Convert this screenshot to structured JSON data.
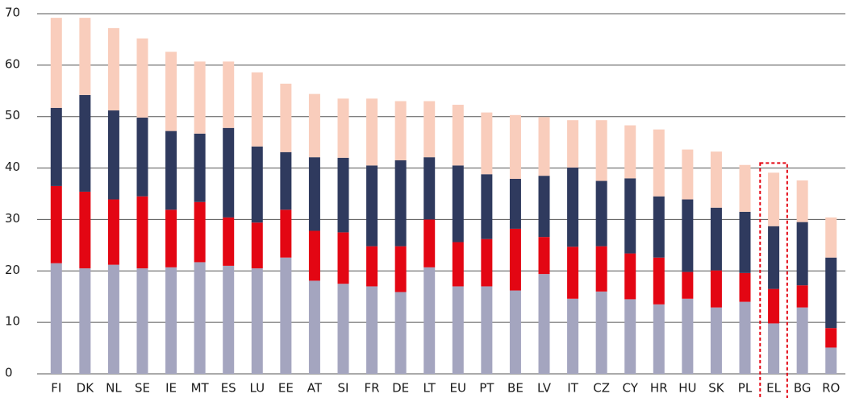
{
  "chart_data": {
    "type": "stacked_bar",
    "categories": [
      "FI",
      "DK",
      "NL",
      "SE",
      "IE",
      "MT",
      "ES",
      "LU",
      "EE",
      "AT",
      "SI",
      "FR",
      "DE",
      "LT",
      "EU",
      "PT",
      "BE",
      "LV",
      "IT",
      "CZ",
      "CY",
      "HR",
      "HU",
      "SK",
      "PL",
      "EL",
      "BG",
      "RO"
    ],
    "series": [
      {
        "color": "#a4a5bf",
        "values": [
          21.5,
          20.5,
          21.2,
          20.5,
          20.7,
          21.7,
          21.0,
          20.5,
          22.6,
          18.1,
          17.5,
          17.0,
          15.9,
          20.7,
          17.0,
          17.0,
          16.2,
          19.4,
          14.6,
          16.0,
          14.5,
          13.5,
          14.6,
          12.9,
          14.0,
          9.8,
          12.9,
          5.1
        ]
      },
      {
        "color": "#e30613",
        "values": [
          15.0,
          14.9,
          12.7,
          14.0,
          11.2,
          11.7,
          9.4,
          8.9,
          9.3,
          9.7,
          10.0,
          7.8,
          8.9,
          9.3,
          8.6,
          9.2,
          12.0,
          7.2,
          10.1,
          8.8,
          8.9,
          9.1,
          5.2,
          7.2,
          5.6,
          6.7,
          4.3,
          3.8
        ]
      },
      {
        "color": "#2f3a5e",
        "values": [
          15.2,
          18.8,
          17.3,
          15.3,
          15.3,
          13.3,
          17.4,
          14.8,
          11.2,
          14.3,
          14.5,
          15.7,
          16.7,
          12.1,
          14.9,
          12.6,
          9.7,
          11.9,
          15.4,
          12.7,
          14.6,
          11.9,
          14.1,
          12.2,
          11.9,
          12.2,
          12.3,
          13.7
        ]
      },
      {
        "color": "#f9cdbc",
        "values": [
          17.5,
          15.0,
          16.0,
          15.4,
          15.4,
          14.0,
          12.9,
          14.4,
          13.3,
          12.3,
          11.5,
          13.0,
          11.5,
          10.9,
          11.8,
          12.0,
          12.4,
          11.4,
          9.2,
          11.8,
          10.3,
          13.0,
          9.7,
          10.9,
          9.1,
          10.4,
          8.1,
          7.8
        ]
      }
    ],
    "ylim": [
      0,
      70
    ],
    "yticks": [
      0,
      10,
      20,
      30,
      40,
      50,
      60,
      70
    ],
    "grid": true,
    "highlight": "EL",
    "highlight_color": "#e30613"
  }
}
